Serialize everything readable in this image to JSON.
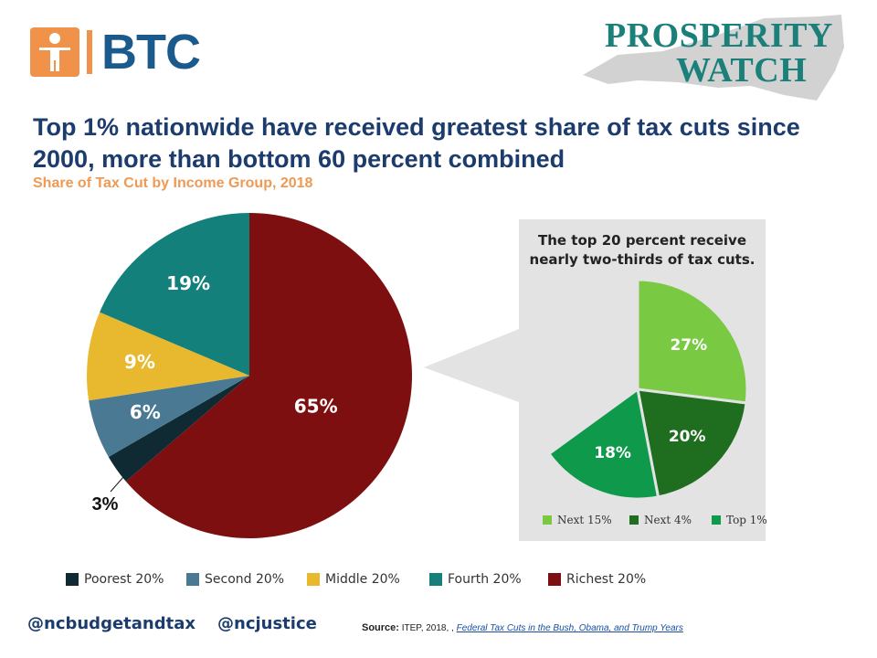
{
  "header": {
    "btc_logo_text": "BTC",
    "prosperity_line1": "PROSPERITY",
    "prosperity_line2": "WATCH"
  },
  "title": "Top 1% nationwide have received greatest share of tax cuts since 2000, more than bottom 60 percent combined",
  "subtitle": "Share of Tax Cut by Income Group, 2018",
  "chart_data": [
    {
      "type": "pie",
      "categories": [
        "Poorest 20%",
        "Second 20%",
        "Middle 20%",
        "Fourth 20%",
        "Richest 20%"
      ],
      "values": [
        3,
        6,
        9,
        19,
        65
      ],
      "labels": [
        "3%",
        "6%",
        "9%",
        "19%",
        "65%"
      ],
      "colors": [
        "#0f2a33",
        "#4a7a93",
        "#e8b92e",
        "#13807c",
        "#7e0f11"
      ],
      "legend": "bottom"
    },
    {
      "type": "pie",
      "title": "The top 20 percent receive nearly two-thirds of tax cuts.",
      "categories": [
        "Next 15%",
        "Next 4%",
        "Top 1%"
      ],
      "values": [
        27,
        20,
        18
      ],
      "labels": [
        "27%",
        "20%",
        "18%"
      ],
      "colors": [
        "#7ac943",
        "#1f6e1f",
        "#0e9a4a"
      ],
      "legend": "bottom"
    }
  ],
  "footer": {
    "handle1": "@ncbudgetandtax",
    "handle2": "@ncjustice",
    "source_label": "Source:",
    "source_text": "ITEP, 2018, ,",
    "source_link": "Federal Tax Cuts in the Bush, Obama, and Trump Years"
  }
}
